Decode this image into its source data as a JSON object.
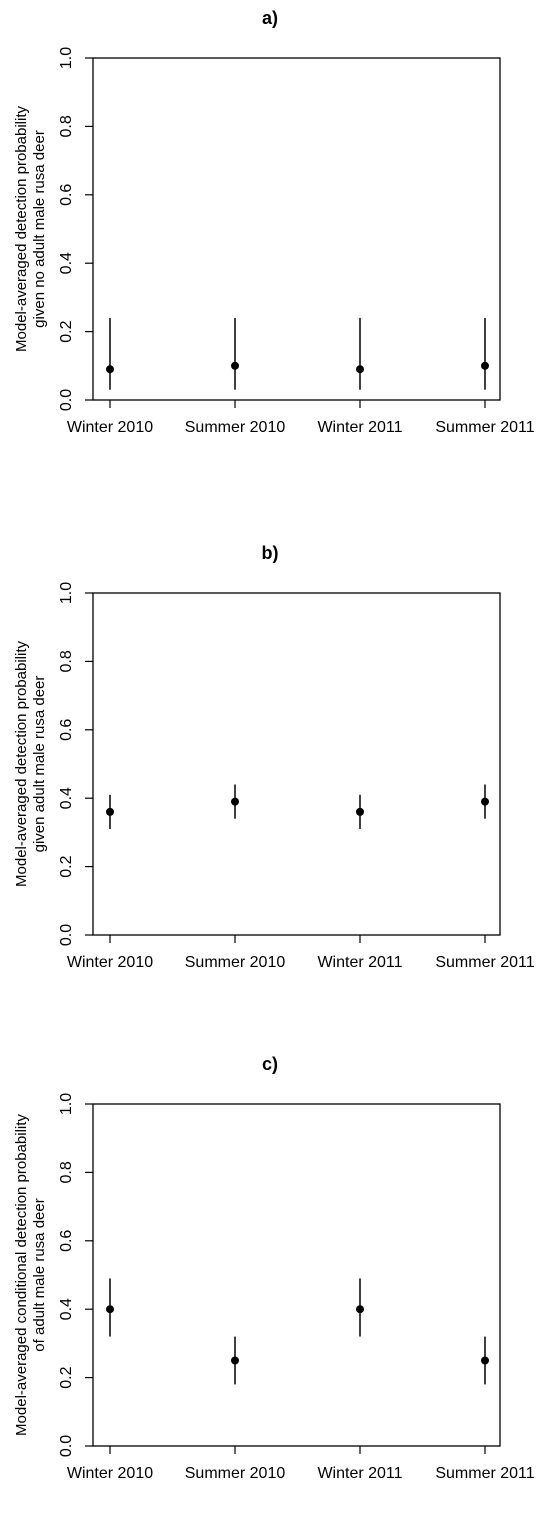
{
  "chart_data": [
    {
      "type": "scatter",
      "title": "a)",
      "ylabel_lines": [
        "Model-averaged detection probability",
        "given no adult male rusa deer"
      ],
      "categories": [
        "Winter 2010",
        "Summer 2010",
        "Winter 2011",
        "Summer 2011"
      ],
      "values": [
        0.09,
        0.1,
        0.09,
        0.1
      ],
      "lower": [
        0.03,
        0.03,
        0.03,
        0.03
      ],
      "upper": [
        0.24,
        0.24,
        0.24,
        0.24
      ],
      "ylim": [
        0,
        1
      ],
      "yticks": [
        "0.0",
        "0.2",
        "0.4",
        "0.6",
        "0.8",
        "1.0"
      ],
      "grid": false,
      "error_bars": true
    },
    {
      "type": "scatter",
      "title": "b)",
      "ylabel_lines": [
        "Model-averaged detection probability",
        "given adult male rusa deer"
      ],
      "categories": [
        "Winter 2010",
        "Summer 2010",
        "Winter 2011",
        "Summer 2011"
      ],
      "values": [
        0.36,
        0.39,
        0.36,
        0.39
      ],
      "lower": [
        0.31,
        0.34,
        0.31,
        0.34
      ],
      "upper": [
        0.41,
        0.44,
        0.41,
        0.44
      ],
      "ylim": [
        0,
        1
      ],
      "yticks": [
        "0.0",
        "0.2",
        "0.4",
        "0.6",
        "0.8",
        "1.0"
      ],
      "grid": false,
      "error_bars": true
    },
    {
      "type": "scatter",
      "title": "c)",
      "ylabel_lines": [
        "Model-averaged conditional detection probability",
        "of adult male rusa deer"
      ],
      "categories": [
        "Winter 2010",
        "Summer 2010",
        "Winter 2011",
        "Summer 2011"
      ],
      "values": [
        0.4,
        0.25,
        0.4,
        0.25
      ],
      "lower": [
        0.32,
        0.18,
        0.32,
        0.18
      ],
      "upper": [
        0.49,
        0.32,
        0.49,
        0.32
      ],
      "ylim": [
        0,
        1
      ],
      "yticks": [
        "0.0",
        "0.2",
        "0.4",
        "0.6",
        "0.8",
        "1.0"
      ],
      "grid": false,
      "error_bars": true
    }
  ]
}
